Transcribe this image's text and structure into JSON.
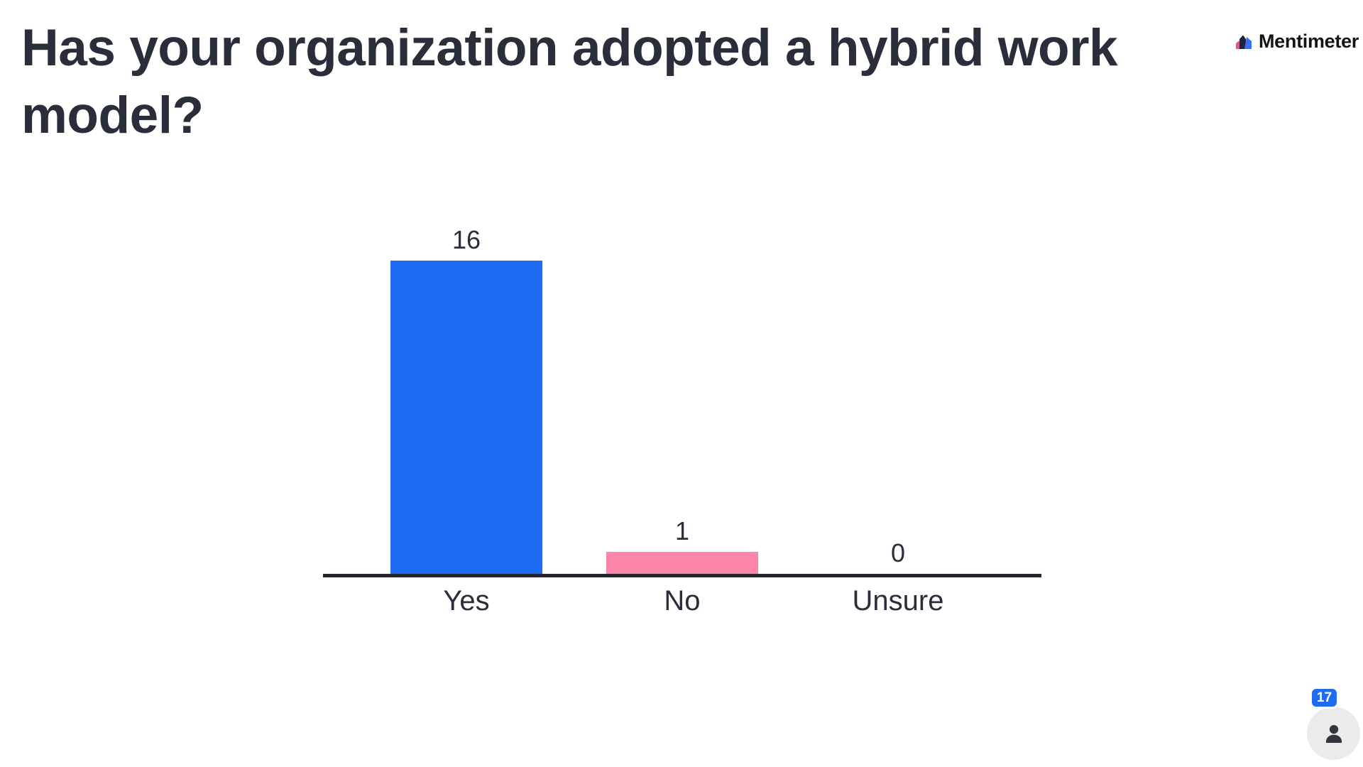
{
  "header": {
    "title": "Has your organization adopted a hybrid work model?",
    "brand": "Mentimeter"
  },
  "chart_data": {
    "type": "bar",
    "title": "Has your organization adopted a hybrid work model?",
    "categories": [
      "Yes",
      "No",
      "Unsure"
    ],
    "values": [
      16,
      1,
      0
    ],
    "value_labels": [
      "16",
      "1",
      "0"
    ],
    "bar_colors": [
      "#1C6BF2",
      "#FC85AA",
      null
    ],
    "xlabel": "",
    "ylabel": "",
    "ylim": [
      0,
      16
    ],
    "grid": false,
    "legend": false,
    "axis_color": "#24262F",
    "label_color": "#2A2D3A"
  },
  "footer": {
    "participants": "17"
  },
  "colors": {
    "accent_blue": "#1C6BF2",
    "accent_pink": "#FC85AA",
    "title_text": "#2A2D3A",
    "badge_blue": "#1F6CF0",
    "presence_circle": "#EBEBEB"
  }
}
